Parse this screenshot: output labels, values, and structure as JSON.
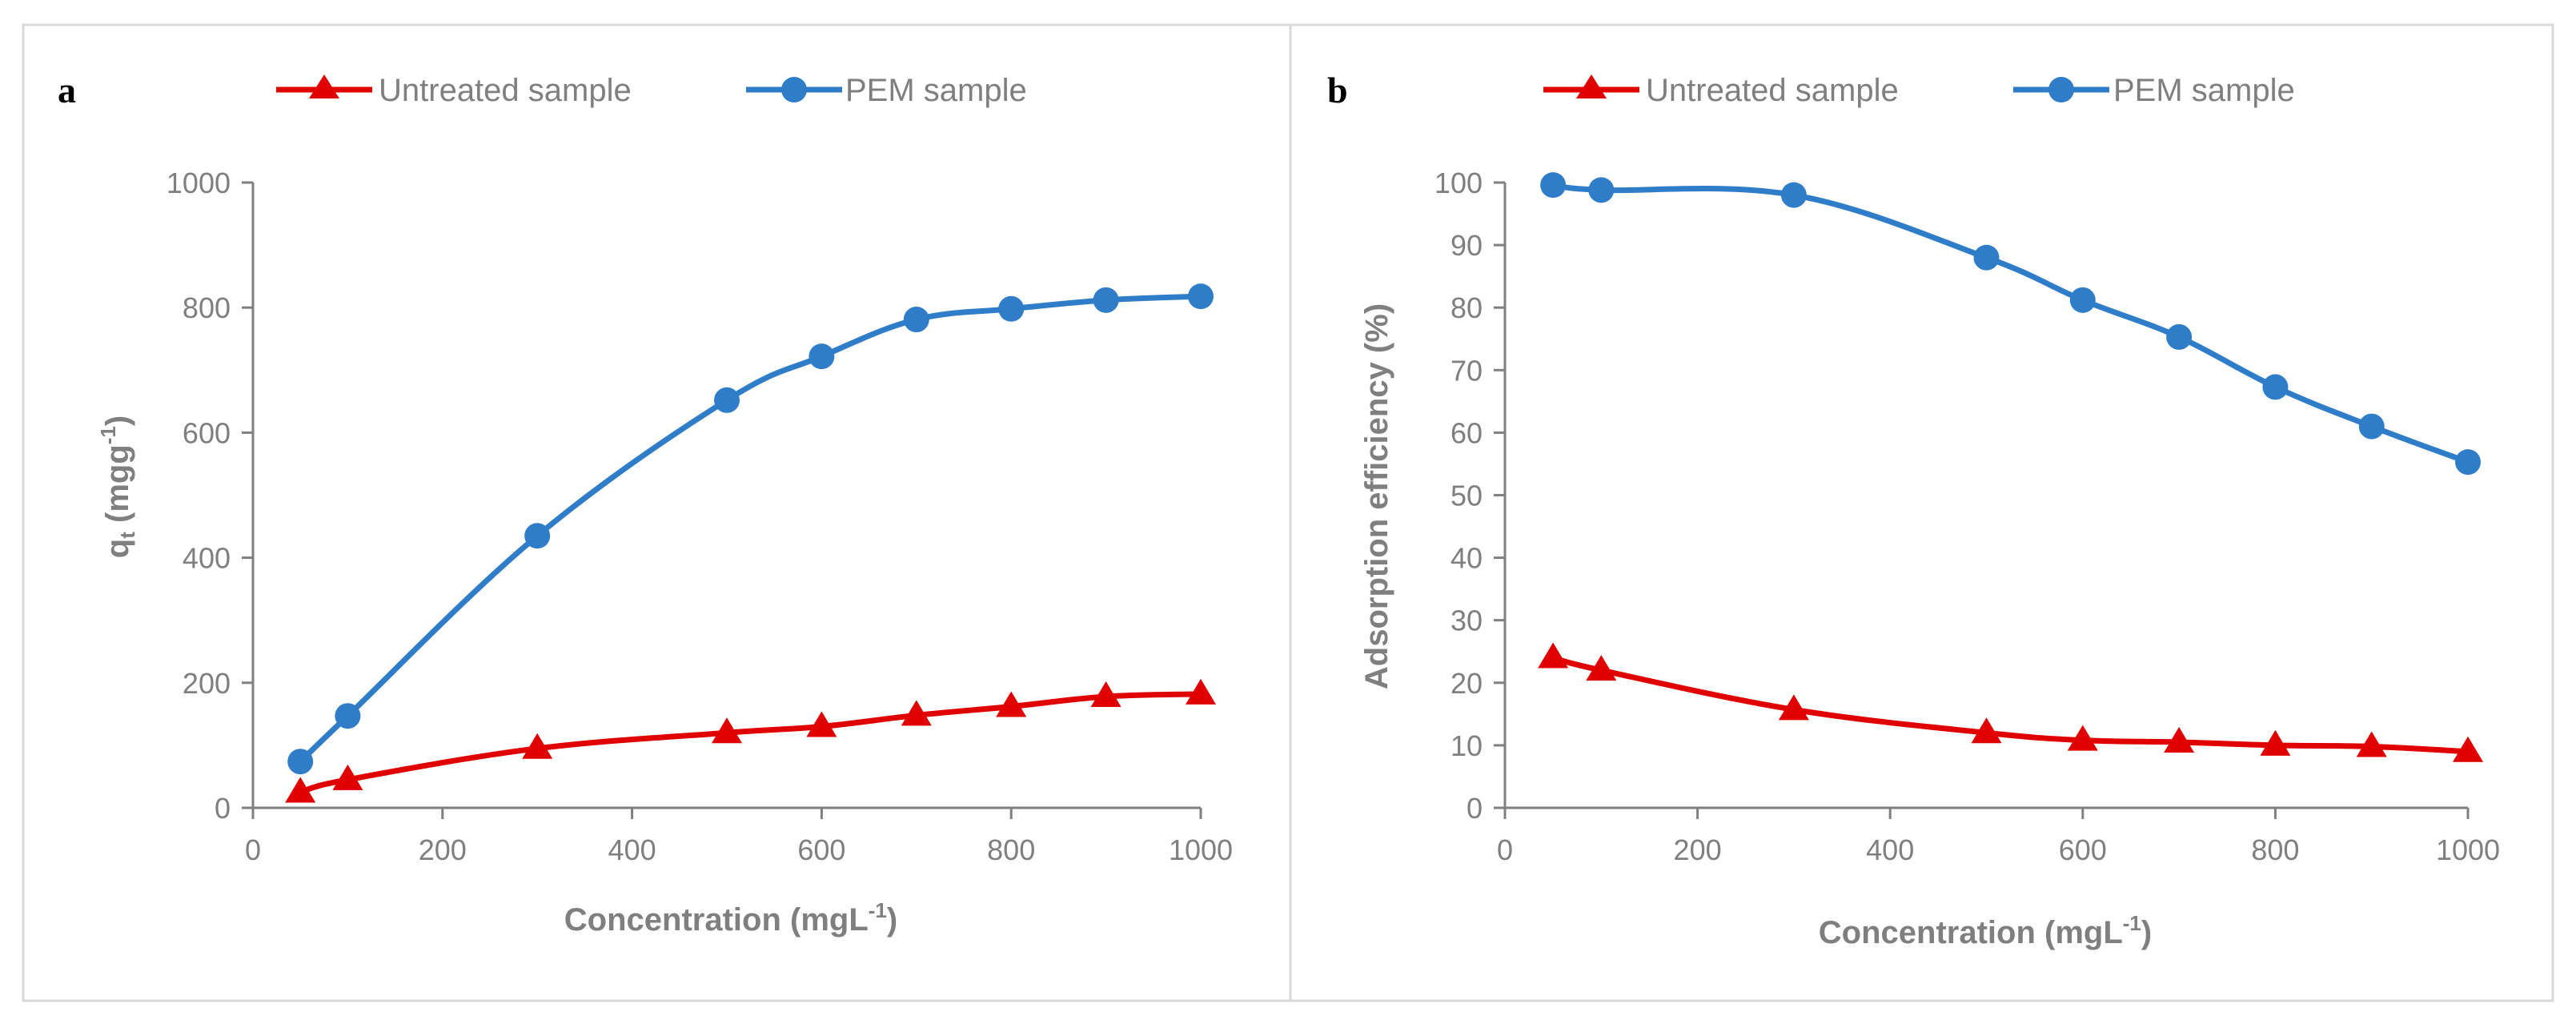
{
  "colors": {
    "untreated": "#e00000",
    "pem": "#2f7dc9",
    "axis": "#7f7f7f",
    "frame": "#d9d9d9"
  },
  "chart_data": [
    {
      "type": "line",
      "panel_label": "a",
      "xlabel": "Concentration (mgL",
      "xlabel_sup": "-1",
      "xlabel_end": ")",
      "ylabel": "q",
      "ylabel_sub": "t",
      "ylabel_mid": " (mgg",
      "ylabel_sup": "-1",
      "ylabel_end": ")",
      "xlim": [
        0,
        1000
      ],
      "ylim": [
        0,
        1000
      ],
      "xticks": [
        "0",
        "200",
        "400",
        "600",
        "800",
        "1000"
      ],
      "yticks": [
        "0",
        "200",
        "400",
        "600",
        "800",
        "1000"
      ],
      "x": [
        50,
        100,
        300,
        500,
        600,
        700,
        800,
        900,
        1000
      ],
      "series": [
        {
          "name": "Untreated sample",
          "marker": "triangle",
          "color_key": "untreated",
          "values": [
            25,
            45,
            95,
            120,
            130,
            148,
            162,
            178,
            182
          ]
        },
        {
          "name": "PEM sample",
          "marker": "circle",
          "color_key": "pem",
          "values": [
            74,
            147,
            435,
            652,
            722,
            781,
            798,
            812,
            818
          ]
        }
      ]
    },
    {
      "type": "line",
      "panel_label": "b",
      "xlabel": "Concentration (mgL",
      "xlabel_sup": "-1",
      "xlabel_end": ")",
      "ylabel": "Adsorption efficiency (%)",
      "xlim": [
        0,
        1000
      ],
      "ylim": [
        0,
        100
      ],
      "xticks": [
        "0",
        "200",
        "400",
        "600",
        "800",
        "1000"
      ],
      "yticks": [
        "0",
        "10",
        "20",
        "30",
        "40",
        "50",
        "60",
        "70",
        "80",
        "90",
        "100"
      ],
      "x": [
        50,
        100,
        300,
        500,
        600,
        700,
        800,
        900,
        1000
      ],
      "series": [
        {
          "name": "Untreated sample",
          "marker": "triangle",
          "color_key": "untreated",
          "values": [
            24,
            22,
            15.7,
            12,
            10.8,
            10.5,
            10,
            9.8,
            9
          ]
        },
        {
          "name": "PEM sample",
          "marker": "circle",
          "color_key": "pem",
          "values": [
            99.6,
            98.8,
            98,
            88,
            81.2,
            75.3,
            67.3,
            61,
            55.3
          ]
        }
      ]
    }
  ]
}
